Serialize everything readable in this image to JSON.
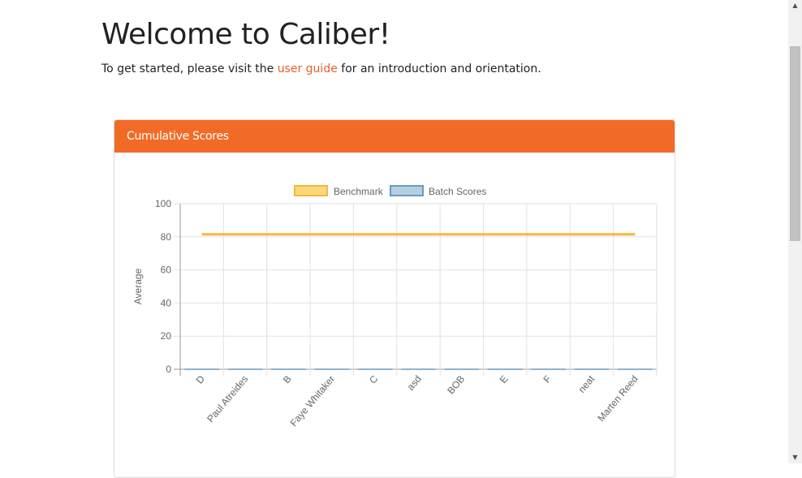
{
  "page": {
    "title": "Welcome to Caliber!",
    "intro_before": "To get started, please visit the ",
    "intro_link": "user guide",
    "intro_after": " for an introduction and orientation."
  },
  "panel": {
    "title": "Cumulative Scores"
  },
  "colors": {
    "accent": "#f26b26",
    "link": "#e8622a",
    "benchmark_line": "#f6b73c",
    "benchmark_fill": "#fcd77a",
    "batch_fill": "#b3cfe0",
    "batch_border": "#6b9ac0"
  },
  "chart_data": {
    "type": "bar",
    "ylabel": "Average",
    "xlabel": "",
    "ylim": [
      0,
      100
    ],
    "yticks": [
      0,
      20,
      40,
      60,
      80,
      100
    ],
    "grid": true,
    "legend": "top",
    "categories": [
      "D",
      "Paul Atreides",
      "B",
      "Faye Whitaker",
      "C",
      "asd",
      "BOB",
      "E",
      "F",
      "neat",
      "Marten Reed"
    ],
    "series": [
      {
        "name": "Benchmark",
        "type": "line",
        "values": [
          81.5,
          81.5,
          81.5,
          81.5,
          81.5,
          81.5,
          81.5,
          81.5,
          81.5,
          81.5,
          81.5
        ]
      },
      {
        "name": "Batch Scores",
        "type": "bar",
        "values": [
          0,
          0,
          0,
          0,
          0,
          0,
          0,
          0,
          0,
          0,
          0
        ]
      }
    ]
  },
  "scrollbar": {
    "up_icon": "▲",
    "down_icon": "▼"
  }
}
